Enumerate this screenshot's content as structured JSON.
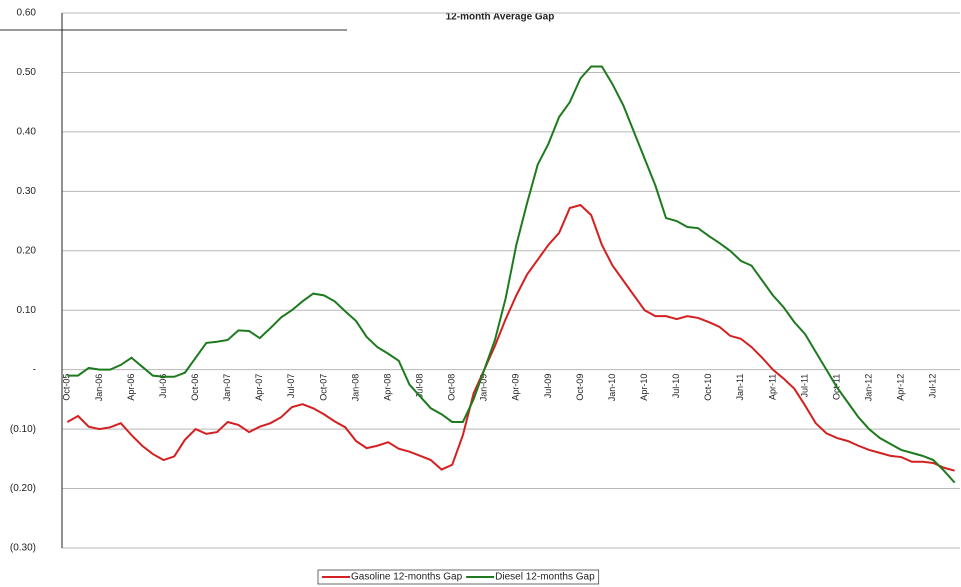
{
  "chart_data": {
    "type": "line",
    "title": "12-month Average Gap",
    "categories": [
      "Oct-05",
      null,
      null,
      "Jan-06",
      null,
      null,
      "Apr-06",
      null,
      null,
      "Jul-06",
      null,
      null,
      "Oct-06",
      null,
      null,
      "Jan-07",
      null,
      null,
      "Apr-07",
      null,
      null,
      "Jul-07",
      null,
      null,
      "Oct-07",
      null,
      null,
      "Jan-08",
      null,
      null,
      "Apr-08",
      null,
      null,
      "Jul-08",
      null,
      null,
      "Oct-08",
      null,
      null,
      "Jan-09",
      null,
      null,
      "Apr-09",
      null,
      null,
      "Jul-09",
      null,
      null,
      "Oct-09",
      null,
      null,
      "Jan-10",
      null,
      null,
      "Apr-10",
      null,
      null,
      "Jul-10",
      null,
      null,
      "Oct-10",
      null,
      null,
      "Jan-11",
      null,
      null,
      "Apr-11",
      null,
      null,
      "Jul-11",
      null,
      null,
      "Oct-11",
      null,
      null,
      "Jan-12",
      null,
      null,
      "Apr-12",
      null,
      null,
      "Jul-12",
      null,
      null
    ],
    "series": [
      {
        "name": "Gasoline 12-months Gap",
        "color": "#d42020",
        "values": [
          -0.088,
          -0.078,
          -0.096,
          -0.1,
          -0.097,
          -0.09,
          -0.11,
          -0.128,
          -0.142,
          -0.152,
          -0.146,
          -0.118,
          -0.1,
          -0.108,
          -0.105,
          -0.088,
          -0.093,
          -0.105,
          -0.096,
          -0.09,
          -0.08,
          -0.063,
          -0.058,
          -0.065,
          -0.075,
          -0.087,
          -0.097,
          -0.12,
          -0.132,
          -0.128,
          -0.122,
          -0.133,
          -0.138,
          -0.145,
          -0.152,
          -0.168,
          -0.16,
          -0.11,
          -0.04,
          0.0,
          0.04,
          0.085,
          0.125,
          0.16,
          0.185,
          0.21,
          0.23,
          0.272,
          0.277,
          0.26,
          0.21,
          0.175,
          0.15,
          0.125,
          0.1,
          0.09,
          0.09,
          0.085,
          0.09,
          0.087,
          0.08,
          0.072,
          0.057,
          0.052,
          0.038,
          0.02,
          0.0,
          -0.015,
          -0.032,
          -0.06,
          -0.09,
          -0.107,
          -0.115,
          -0.12,
          -0.128,
          -0.135,
          -0.14,
          -0.145,
          -0.147,
          -0.155,
          -0.155,
          -0.157,
          -0.165,
          -0.17
        ]
      },
      {
        "name": "Diesel 12-months Gap",
        "color": "#1e7a1e",
        "values": [
          -0.01,
          -0.01,
          0.003,
          0.0,
          0.0,
          0.008,
          0.02,
          0.005,
          -0.01,
          -0.012,
          -0.012,
          -0.005,
          0.02,
          0.045,
          0.047,
          0.05,
          0.066,
          0.065,
          0.053,
          0.07,
          0.088,
          0.1,
          0.115,
          0.128,
          0.125,
          0.115,
          0.098,
          0.082,
          0.055,
          0.038,
          0.027,
          0.015,
          -0.025,
          -0.045,
          -0.065,
          -0.075,
          -0.088,
          -0.088,
          -0.05,
          0.0,
          0.05,
          0.12,
          0.21,
          0.28,
          0.345,
          0.38,
          0.425,
          0.45,
          0.49,
          0.51,
          0.51,
          0.48,
          0.445,
          0.4,
          0.355,
          0.31,
          0.255,
          0.25,
          0.24,
          0.238,
          0.225,
          0.213,
          0.2,
          0.183,
          0.175,
          0.15,
          0.125,
          0.105,
          0.08,
          0.06,
          0.03,
          0.0,
          -0.03,
          -0.055,
          -0.08,
          -0.1,
          -0.115,
          -0.125,
          -0.135,
          -0.14,
          -0.145,
          -0.152,
          -0.17,
          -0.19
        ]
      }
    ],
    "ylim": [
      -0.3,
      0.6
    ],
    "yticks": [
      {
        "value": -0.3,
        "label": "(0.30)"
      },
      {
        "value": -0.2,
        "label": "(0.20)"
      },
      {
        "value": -0.1,
        "label": "(0.10)"
      },
      {
        "value": 0,
        "label": "-"
      },
      {
        "value": 0.1,
        "label": "0.10"
      },
      {
        "value": 0.2,
        "label": "0.20"
      },
      {
        "value": 0.3,
        "label": "0.30"
      },
      {
        "value": 0.4,
        "label": "0.40"
      },
      {
        "value": 0.5,
        "label": "0.50"
      },
      {
        "value": 0.6,
        "label": "0.60"
      }
    ],
    "grid": true,
    "legend": "bottom"
  }
}
